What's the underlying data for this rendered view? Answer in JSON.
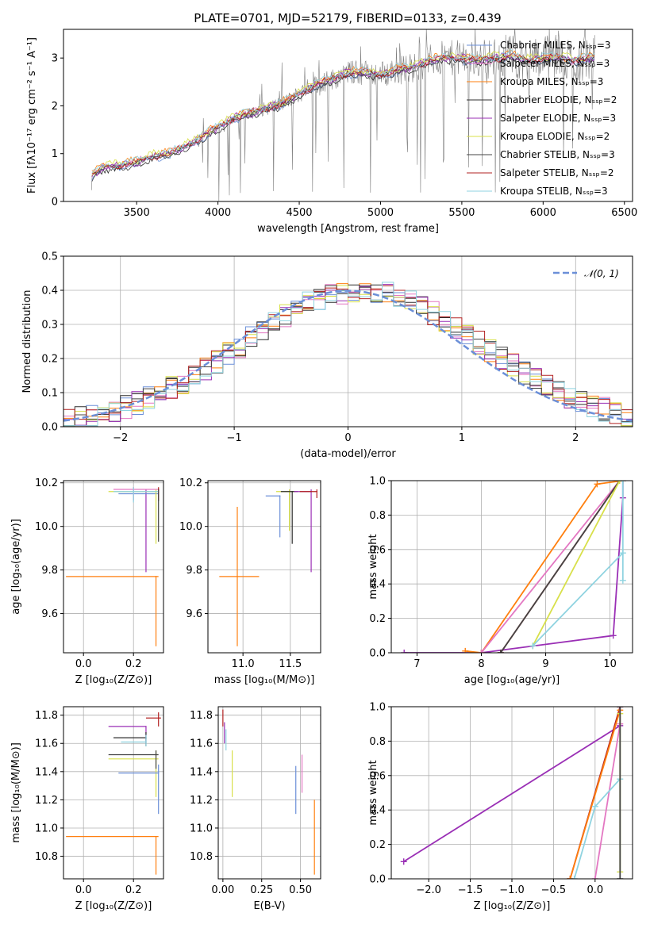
{
  "title": "PLATE=0701, MJD=52179, FIBERID=0133, z=0.439",
  "colors": {
    "chabrier_miles": "#6b8fd8",
    "salpeter_miles": "#e377c2",
    "kroupa_miles": "#ff7f0e",
    "chabrier_elodie": "#2f2f2f",
    "salpeter_elodie": "#9a2fb5",
    "kroupa_elodie": "#d8e04a",
    "chabrier_stelib": "#444444",
    "salpeter_stelib": "#b22222",
    "kroupa_stelib": "#8fd3e0",
    "data": "#808080",
    "normal": "#6b8fd8"
  },
  "chart_data": [
    {
      "id": "spectrum",
      "type": "line",
      "title": "PLATE=0701, MJD=52179, FIBERID=0133, z=0.439",
      "xlabel": "wavelength [Angstrom, rest frame]",
      "ylabel": "Flux [fλ10⁻¹⁷ erg cm⁻² s⁻¹ A⁻¹]",
      "xlim": [
        3050,
        6550
      ],
      "ylim": [
        0,
        3.6
      ],
      "xticks": [
        3500,
        4000,
        4500,
        5000,
        5500,
        6000,
        6500
      ],
      "yticks": [
        0,
        1,
        2,
        3
      ],
      "legend_position": "top-right",
      "legend": [
        "Chabrier MILES, Nₛₛₚ=3",
        "Salpeter MILES, Nₛₛₚ=3",
        "Kroupa MILES, Nₛₛₚ=3",
        "Chabrier ELODIE, Nₛₛₚ=2",
        "Salpeter ELODIE, Nₛₛₚ=3",
        "Kroupa ELODIE, Nₛₛₚ=2",
        "Chabrier STELIB, Nₛₛₚ=3",
        "Salpeter STELIB, Nₛₛₚ=2",
        "Kroupa STELIB, Nₛₛₚ=3"
      ],
      "series_keys": [
        "chabrier_miles",
        "salpeter_miles",
        "kroupa_miles",
        "chabrier_elodie",
        "salpeter_elodie",
        "kroupa_elodie",
        "chabrier_stelib",
        "salpeter_stelib",
        "kroupa_stelib"
      ],
      "continuum": [
        [
          3220,
          0.0
        ],
        [
          3225,
          0.55
        ],
        [
          3300,
          0.72
        ],
        [
          3400,
          0.75
        ],
        [
          3500,
          0.82
        ],
        [
          3600,
          0.95
        ],
        [
          3700,
          1.0
        ],
        [
          3800,
          1.15
        ],
        [
          3900,
          1.35
        ],
        [
          4000,
          1.55
        ],
        [
          4100,
          1.75
        ],
        [
          4200,
          1.85
        ],
        [
          4300,
          1.95
        ],
        [
          4400,
          2.05
        ],
        [
          4500,
          2.25
        ],
        [
          4600,
          2.45
        ],
        [
          4700,
          2.55
        ],
        [
          4800,
          2.7
        ],
        [
          4900,
          2.7
        ],
        [
          5000,
          2.65
        ],
        [
          5100,
          2.75
        ],
        [
          5200,
          2.8
        ],
        [
          5300,
          2.95
        ],
        [
          5400,
          3.0
        ],
        [
          5500,
          3.0
        ],
        [
          5600,
          2.95
        ],
        [
          5700,
          3.0
        ],
        [
          5800,
          3.05
        ],
        [
          5900,
          2.95
        ],
        [
          6000,
          3.0
        ],
        [
          6100,
          3.0
        ],
        [
          6200,
          2.95
        ],
        [
          6300,
          3.0
        ]
      ]
    },
    {
      "id": "residuals",
      "type": "bar",
      "xlabel": "(data-model)/error",
      "ylabel": "Normed distribution",
      "xlim": [
        -2.5,
        2.5
      ],
      "ylim": [
        0,
        0.5
      ],
      "xticks": [
        -2,
        -1,
        0,
        1,
        2
      ],
      "yticks": [
        0.0,
        0.1,
        0.2,
        0.3,
        0.4,
        0.5
      ],
      "legend": [
        "𝒩(0, 1)"
      ],
      "legend_position": "top-right",
      "bin_width": 0.1
    },
    {
      "id": "age_vs_Z",
      "type": "scatter",
      "xlabel": "Z [log₁₀(Z/Z⊙)]",
      "ylabel": "age  [log₁₀(age/yr)]",
      "xlim": [
        -0.08,
        0.32
      ],
      "ylim": [
        9.42,
        10.21
      ],
      "xticks": [
        0.0,
        0.2
      ],
      "yticks": [
        9.6,
        9.8,
        10.0,
        10.2
      ],
      "points": [
        {
          "key": "kroupa_miles",
          "x": 0.29,
          "xlo": -0.07,
          "xhi": 0.3,
          "y": 9.77,
          "ylo": 9.45,
          "yhi": 9.77
        },
        {
          "key": "salpeter_elodie",
          "x": 0.25,
          "xlo": 0.25,
          "xhi": 0.25,
          "y": 10.16,
          "ylo": 9.79,
          "yhi": 10.17
        },
        {
          "key": "chabrier_miles",
          "x": 0.2,
          "xlo": 0.14,
          "xhi": 0.3,
          "y": 10.15,
          "ylo": 10.12,
          "yhi": 10.17
        },
        {
          "key": "salpeter_miles",
          "x": 0.2,
          "xlo": 0.12,
          "xhi": 0.3,
          "y": 10.17,
          "ylo": 10.12,
          "yhi": 10.18
        },
        {
          "key": "kroupa_elodie",
          "x": 0.29,
          "xlo": 0.1,
          "xhi": 0.3,
          "y": 10.16,
          "ylo": 9.92,
          "yhi": 10.17
        },
        {
          "key": "salpeter_stelib",
          "x": 0.3,
          "xlo": 0.3,
          "xhi": 0.3,
          "y": 10.17,
          "ylo": 10.12,
          "yhi": 10.18
        },
        {
          "key": "kroupa_stelib",
          "x": 0.2,
          "xlo": 0.12,
          "xhi": 0.3,
          "y": 10.16,
          "ylo": 10.11,
          "yhi": 10.18
        },
        {
          "key": "chabrier_stelib",
          "x": 0.3,
          "xlo": 0.3,
          "xhi": 0.3,
          "y": 10.12,
          "ylo": 9.93,
          "yhi": 10.17
        }
      ]
    },
    {
      "id": "age_vs_mass",
      "type": "scatter",
      "xlabel": "mass [log₁₀(M/M⊙)]",
      "ylabel": "",
      "xlim": [
        10.63,
        11.82
      ],
      "ylim": [
        9.42,
        10.21
      ],
      "xticks": [
        11.0,
        11.5
      ],
      "yticks": [
        9.6,
        9.8,
        10.0,
        10.2
      ],
      "points": [
        {
          "key": "kroupa_miles",
          "x": 10.94,
          "xlo": 10.75,
          "xhi": 11.17,
          "y": 9.77,
          "ylo": 9.45,
          "yhi": 10.09
        },
        {
          "key": "chabrier_miles",
          "x": 11.39,
          "xlo": 11.24,
          "xhi": 11.39,
          "y": 10.14,
          "ylo": 9.95,
          "yhi": 10.14
        },
        {
          "key": "kroupa_elodie",
          "x": 11.49,
          "xlo": 11.35,
          "xhi": 11.55,
          "y": 10.16,
          "ylo": 9.98,
          "yhi": 10.17
        },
        {
          "key": "chabrier_elodie",
          "x": 11.52,
          "xlo": 11.4,
          "xhi": 11.58,
          "y": 10.16,
          "ylo": 9.92,
          "yhi": 10.16
        },
        {
          "key": "salpeter_elodie",
          "x": 11.72,
          "xlo": 11.54,
          "xhi": 11.72,
          "y": 10.16,
          "ylo": 9.79,
          "yhi": 10.17
        },
        {
          "key": "salpeter_stelib",
          "x": 11.78,
          "xlo": 11.6,
          "xhi": 11.78,
          "y": 10.16,
          "ylo": 10.13,
          "yhi": 10.17
        }
      ]
    },
    {
      "id": "weight_vs_age",
      "type": "line",
      "xlabel": "age  [log₁₀(age/yr)]",
      "ylabel": "mass weight",
      "xlim": [
        6.6,
        10.35
      ],
      "ylim": [
        0,
        1.0
      ],
      "xticks": [
        7,
        8,
        9,
        10
      ],
      "yticks": [
        0.0,
        0.2,
        0.4,
        0.6,
        0.8,
        1.0
      ],
      "series": [
        {
          "key": "salpeter_elodie",
          "points": [
            [
              6.8,
              0.0
            ],
            [
              8.0,
              0.0
            ],
            [
              10.05,
              0.1
            ],
            [
              10.2,
              0.9
            ],
            [
              10.2,
              1.0
            ]
          ]
        },
        {
          "key": "kroupa_miles",
          "points": [
            [
              7.75,
              0.01
            ],
            [
              8.0,
              0.0
            ],
            [
              9.8,
              0.98
            ],
            [
              10.2,
              1.0
            ]
          ]
        },
        {
          "key": "salpeter_miles",
          "points": [
            [
              8.0,
              0.0
            ],
            [
              10.15,
              1.0
            ]
          ]
        },
        {
          "key": "salpeter_stelib",
          "points": [
            [
              8.3,
              0.0
            ],
            [
              10.15,
              1.0
            ]
          ]
        },
        {
          "key": "chabrier_stelib",
          "points": [
            [
              8.3,
              0.0
            ],
            [
              10.15,
              1.0
            ]
          ]
        },
        {
          "key": "kroupa_elodie",
          "points": [
            [
              8.8,
              0.04
            ],
            [
              10.15,
              1.0
            ]
          ]
        },
        {
          "key": "kroupa_stelib",
          "points": [
            [
              8.8,
              0.04
            ],
            [
              10.2,
              0.58
            ],
            [
              10.2,
              0.42
            ],
            [
              10.2,
              1.0
            ]
          ]
        }
      ]
    },
    {
      "id": "mass_vs_Z",
      "type": "scatter",
      "xlabel": "Z [log₁₀(Z/Z⊙)]",
      "ylabel": "mass [log₁₀(M/M⊙)]",
      "xlim": [
        -0.08,
        0.32
      ],
      "ylim": [
        10.64,
        11.86
      ],
      "xticks": [
        0.0,
        0.2
      ],
      "yticks": [
        10.8,
        11.0,
        11.2,
        11.4,
        11.6,
        11.8
      ],
      "points": [
        {
          "key": "kroupa_miles",
          "x": 0.29,
          "xlo": -0.07,
          "xhi": 0.3,
          "y": 10.94,
          "ylo": 10.67,
          "yhi": 10.94
        },
        {
          "key": "salpeter_elodie",
          "x": 0.25,
          "xlo": 0.1,
          "xhi": 0.25,
          "y": 11.72,
          "ylo": 11.6,
          "yhi": 11.72
        },
        {
          "key": "chabrier_elodie",
          "x": 0.25,
          "xlo": 0.12,
          "xhi": 0.25,
          "y": 11.64,
          "ylo": 11.58,
          "yhi": 11.68
        },
        {
          "key": "kroupa_stelib",
          "x": 0.25,
          "xlo": 0.15,
          "xhi": 0.25,
          "y": 11.61,
          "ylo": 11.58,
          "yhi": 11.66
        },
        {
          "key": "kroupa_elodie",
          "x": 0.29,
          "xlo": 0.1,
          "xhi": 0.3,
          "y": 11.49,
          "ylo": 11.22,
          "yhi": 11.55
        },
        {
          "key": "chabrier_stelib",
          "x": 0.29,
          "xlo": 0.1,
          "xhi": 0.3,
          "y": 11.52,
          "ylo": 11.42,
          "yhi": 11.55
        },
        {
          "key": "chabrier_miles",
          "x": 0.3,
          "xlo": 0.14,
          "xhi": 0.3,
          "y": 11.39,
          "ylo": 11.1,
          "yhi": 11.45
        },
        {
          "key": "salpeter_stelib",
          "x": 0.3,
          "xlo": 0.25,
          "xhi": 0.31,
          "y": 11.78,
          "ylo": 11.72,
          "yhi": 11.82
        }
      ]
    },
    {
      "id": "mass_vs_ebv",
      "type": "scatter",
      "xlabel": "E(B-V)",
      "ylabel": "",
      "xlim": [
        -0.03,
        0.63
      ],
      "ylim": [
        10.64,
        11.86
      ],
      "xticks": [
        0.0,
        0.25,
        0.5
      ],
      "yticks": [
        10.8,
        11.0,
        11.2,
        11.4,
        11.6,
        11.8
      ],
      "points": [
        {
          "key": "salpeter_stelib",
          "x": 0.0,
          "ylo": 11.72,
          "yhi": 11.84
        },
        {
          "key": "salpeter_elodie",
          "x": 0.01,
          "ylo": 11.6,
          "yhi": 11.75
        },
        {
          "key": "kroupa_stelib",
          "x": 0.02,
          "ylo": 11.55,
          "yhi": 11.7
        },
        {
          "key": "kroupa_elodie",
          "x": 0.06,
          "ylo": 11.22,
          "yhi": 11.55
        },
        {
          "key": "chabrier_miles",
          "x": 0.47,
          "ylo": 11.1,
          "yhi": 11.44
        },
        {
          "key": "salpeter_miles",
          "x": 0.51,
          "ylo": 11.25,
          "yhi": 11.52
        },
        {
          "key": "kroupa_miles",
          "x": 0.59,
          "ylo": 10.67,
          "yhi": 11.2
        }
      ]
    },
    {
      "id": "weight_vs_Z",
      "type": "line",
      "xlabel": "Z [log₁₀(Z/Z⊙)]",
      "ylabel": "mass weight",
      "xlim": [
        -2.45,
        0.45
      ],
      "ylim": [
        0,
        1.0
      ],
      "xticks": [
        -2.0,
        -1.5,
        -1.0,
        -0.5,
        0.0
      ],
      "yticks": [
        0.0,
        0.2,
        0.4,
        0.6,
        0.8,
        1.0
      ],
      "series": [
        {
          "key": "salpeter_elodie",
          "points": [
            [
              -2.3,
              0.1
            ],
            [
              0.3,
              0.89
            ]
          ]
        },
        {
          "key": "salpeter_stelib",
          "points": [
            [
              -0.3,
              0.0
            ],
            [
              0.3,
              1.0
            ]
          ]
        },
        {
          "key": "kroupa_miles",
          "points": [
            [
              -0.3,
              0.0
            ],
            [
              0.3,
              0.98
            ]
          ]
        },
        {
          "key": "salpeter_miles",
          "points": [
            [
              0.0,
              0.0
            ],
            [
              0.3,
              0.9
            ],
            [
              0.3,
              1.0
            ]
          ]
        },
        {
          "key": "kroupa_stelib",
          "points": [
            [
              -0.25,
              0.0
            ],
            [
              0.0,
              0.42
            ],
            [
              0.3,
              0.58
            ]
          ]
        },
        {
          "key": "kroupa_elodie",
          "points": [
            [
              0.3,
              0.04
            ],
            [
              0.3,
              0.96
            ]
          ]
        },
        {
          "key": "chabrier_stelib",
          "points": [
            [
              0.3,
              0.0
            ],
            [
              0.3,
              1.0
            ]
          ]
        }
      ]
    }
  ]
}
